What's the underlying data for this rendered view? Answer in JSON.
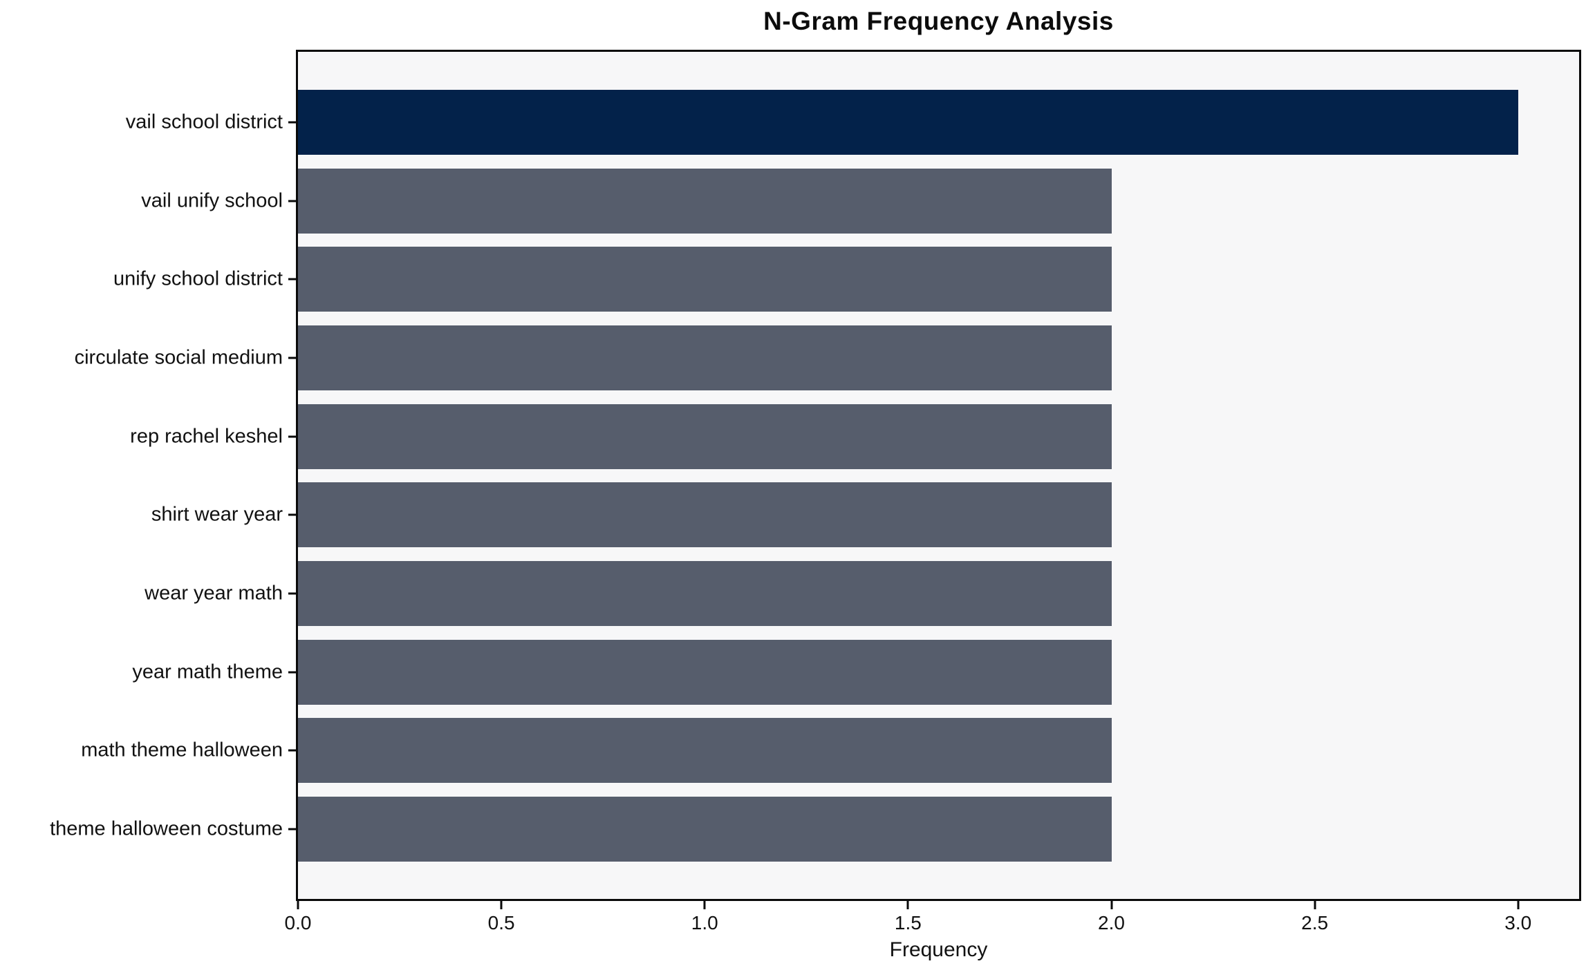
{
  "chart_data": {
    "type": "bar",
    "orientation": "horizontal",
    "title": "N-Gram Frequency Analysis",
    "xlabel": "Frequency",
    "ylabel": "",
    "categories": [
      "vail school district",
      "vail unify school",
      "unify school district",
      "circulate social medium",
      "rep rachel keshel",
      "shirt wear year",
      "wear year math",
      "year math theme",
      "math theme halloween",
      "theme halloween costume"
    ],
    "values": [
      3,
      2,
      2,
      2,
      2,
      2,
      2,
      2,
      2,
      2
    ],
    "xlim": [
      0,
      3.15
    ],
    "xticks": [
      0,
      0.5,
      1,
      1.5,
      2,
      2.5,
      3
    ],
    "xtick_labels": [
      "0.0",
      "0.5",
      "1.0",
      "1.5",
      "2.0",
      "2.5",
      "3.0"
    ],
    "grid": false,
    "legend": "none",
    "bar_colors": [
      "#03224a",
      "#565d6c",
      "#565d6c",
      "#565d6c",
      "#565d6c",
      "#565d6c",
      "#565d6c",
      "#565d6c",
      "#565d6c",
      "#565d6c"
    ],
    "colors": {
      "highlight": "#03224a",
      "default": "#565d6c",
      "plot_background": "#f7f7f8",
      "figure_background": "#ffffff",
      "axis": "#0a0a0a",
      "text": "#111111"
    }
  }
}
